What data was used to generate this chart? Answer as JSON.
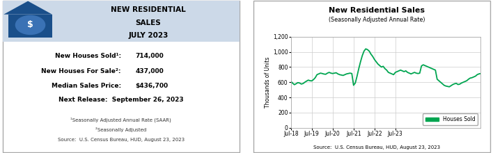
{
  "left_panel": {
    "header_bg": "#ccd9e8",
    "header_text": [
      "NEW RESIDENTIAL",
      "SALES",
      "JULY 2023"
    ],
    "stats": [
      {
        "label": "New Houses Sold¹:",
        "value": "714,000"
      },
      {
        "label": "New Houses For Sale²:",
        "value": "437,000"
      },
      {
        "label": "Median Sales Price:",
        "value": "$436,700"
      }
    ],
    "next_release": "Next Release:  September 26, 2023",
    "footnotes": [
      "¹Seasonally Adjusted Annual Rate (SAAR)",
      "²Seasonally Adjusted",
      "Source:  U.S. Census Bureau, HUD, August 23, 2023"
    ]
  },
  "right_panel": {
    "title": "New Residential Sales",
    "subtitle": "(Seasonally Adjusted Annual Rate)",
    "ylabel": "Thousands of Units",
    "source": "Source:  U.S. Census Bureau, HUD, August 23, 2023",
    "line_color": "#00a550",
    "legend_label": "Houses Sold",
    "ylim": [
      0,
      1200
    ],
    "yticks": [
      0,
      200,
      400,
      600,
      800,
      1000,
      1200
    ],
    "xtick_labels": [
      "Jul-18",
      "Jul-19",
      "Jul-20",
      "Jul-21",
      "Jul-22",
      "Jul-23"
    ],
    "data": [
      612,
      588,
      568,
      580,
      595,
      590,
      576,
      583,
      600,
      615,
      628,
      620,
      618,
      635,
      660,
      700,
      710,
      720,
      715,
      708,
      705,
      720,
      730,
      720,
      715,
      720,
      725,
      710,
      700,
      695,
      690,
      700,
      710,
      715,
      720,
      715,
      560,
      590,
      680,
      780,
      870,
      950,
      1010,
      1040,
      1030,
      1010,
      970,
      940,
      900,
      870,
      840,
      820,
      800,
      810,
      780,
      760,
      730,
      720,
      710,
      700,
      730,
      740,
      750,
      760,
      750,
      740,
      750,
      730,
      720,
      710,
      720,
      730,
      720,
      715,
      720,
      815,
      830,
      820,
      810,
      800,
      790,
      780,
      770,
      760,
      640,
      620,
      600,
      580,
      560,
      550,
      545,
      540,
      555,
      570,
      580,
      585,
      570,
      575,
      590,
      600,
      610,
      620,
      640,
      655,
      660,
      670,
      680,
      700,
      710,
      714
    ]
  }
}
